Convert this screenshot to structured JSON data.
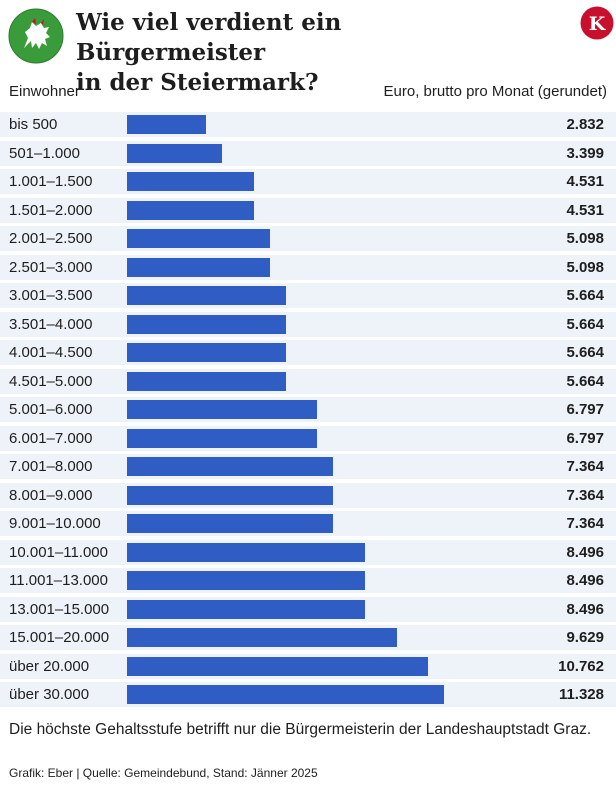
{
  "header": {
    "title_line1": "Wie viel verdient ein Bürgermeister",
    "title_line2": "in der Steiermark?",
    "left_logo_icon": "styria-panther-coat-of-arms-icon",
    "right_logo_icon": "kleine-zeitung-k-logo-icon",
    "right_logo_letter": "K"
  },
  "columns": {
    "left": "Einwohner",
    "right": "Euro, brutto pro Monat (gerundet)"
  },
  "colors": {
    "bar": "#2f5dc4",
    "row_background": "#eef3fa",
    "logo_green": "#3a9b3a",
    "logo_red": "#c8102e"
  },
  "chart_data": {
    "type": "bar",
    "orientation": "horizontal",
    "title": "Wie viel verdient ein Bürgermeister in der Steiermark?",
    "xlabel": "Euro, brutto pro Monat (gerundet)",
    "ylabel": "Einwohner",
    "xlim": [
      0,
      11328
    ],
    "categories": [
      "bis 500",
      "501–1.000",
      "1.001–1.500",
      "1.501–2.000",
      "2.001–2.500",
      "2.501–3.000",
      "3.001–3.500",
      "3.501–4.000",
      "4.001–4.500",
      "4.501–5.000",
      "5.001–6.000",
      "6.001–7.000",
      "7.001–8.000",
      "8.001–9.000",
      "9.001–10.000",
      "10.001–11.000",
      "11.001–13.000",
      "13.001–15.000",
      "15.001–20.000",
      "über 20.000",
      "über 30.000"
    ],
    "values": [
      2832,
      3399,
      4531,
      4531,
      5098,
      5098,
      5664,
      5664,
      5664,
      5664,
      6797,
      6797,
      7364,
      7364,
      7364,
      8496,
      8496,
      8496,
      9629,
      10762,
      11328
    ],
    "value_labels": [
      "2.832",
      "3.399",
      "4.531",
      "4.531",
      "5.098",
      "5.098",
      "5.664",
      "5.664",
      "5.664",
      "5.664",
      "6.797",
      "6.797",
      "7.364",
      "7.364",
      "7.364",
      "8.496",
      "8.496",
      "8.496",
      "9.629",
      "10.762",
      "11.328"
    ],
    "grid": false,
    "legend": false
  },
  "footer": {
    "note": "Die höchste Gehaltsstufe betrifft nur die Bürgermeisterin der Landeshauptstadt Graz.",
    "source": "Grafik: Eber | Quelle: Gemeindebund, Stand: Jänner 2025"
  }
}
